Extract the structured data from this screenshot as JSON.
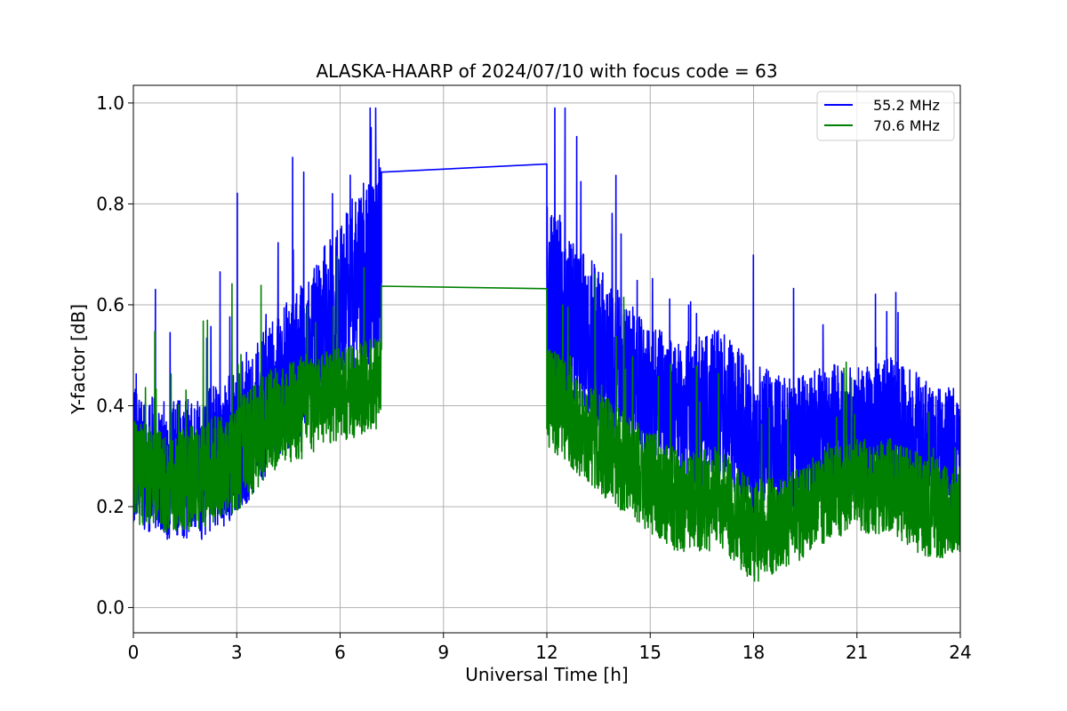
{
  "chart_data": {
    "type": "line",
    "title": "ALASKA-HAARP of 2024/07/10 with focus code = 63",
    "xlabel": "Universal Time [h]",
    "ylabel": "Y-factor [dB]",
    "xlim": [
      0,
      24
    ],
    "ylim": [
      -0.05,
      1.035
    ],
    "xticks": [
      0,
      3,
      6,
      9,
      12,
      15,
      18,
      21,
      24
    ],
    "xtick_labels": [
      "0",
      "3",
      "6",
      "9",
      "12",
      "15",
      "18",
      "21",
      "24"
    ],
    "yticks": [
      0.0,
      0.2,
      0.4,
      0.6,
      0.8,
      1.0
    ],
    "ytick_labels": [
      "0.0",
      "0.2",
      "0.4",
      "0.6",
      "0.8",
      "1.0"
    ],
    "grid": true,
    "legend_position": "top-right",
    "series": [
      {
        "name": "55.2 MHz",
        "color": "#0000ff",
        "envelope": {
          "x": [
            0,
            1,
            2,
            3,
            4,
            5,
            6,
            7,
            7.2,
            12.0,
            13,
            14,
            15,
            16,
            17,
            18,
            19,
            20,
            21,
            22,
            23,
            24
          ],
          "y": [
            0.3,
            0.27,
            0.28,
            0.33,
            0.42,
            0.5,
            0.6,
            0.68,
            0.68,
            0.62,
            0.55,
            0.48,
            0.42,
            0.38,
            0.4,
            0.33,
            0.32,
            0.35,
            0.34,
            0.36,
            0.32,
            0.31
          ],
          "amp": [
            0.16,
            0.16,
            0.17,
            0.18,
            0.17,
            0.18,
            0.2,
            0.23,
            0.23,
            0.22,
            0.2,
            0.18,
            0.17,
            0.17,
            0.18,
            0.18,
            0.16,
            0.16,
            0.16,
            0.16,
            0.16,
            0.14
          ]
        },
        "gap": {
          "x": [
            7.2,
            12.0
          ],
          "y": [
            0.863,
            0.879
          ]
        }
      },
      {
        "name": "70.6 MHz",
        "color": "#008000",
        "envelope": {
          "x": [
            0,
            1,
            2,
            3,
            4,
            5,
            6,
            7,
            7.2,
            12.0,
            13,
            14,
            15,
            16,
            17,
            18,
            19,
            20,
            21,
            22,
            23,
            24
          ],
          "y": [
            0.27,
            0.25,
            0.26,
            0.3,
            0.37,
            0.4,
            0.42,
            0.44,
            0.44,
            0.42,
            0.36,
            0.3,
            0.25,
            0.2,
            0.22,
            0.15,
            0.17,
            0.22,
            0.24,
            0.24,
            0.2,
            0.19
          ],
          "amp": [
            0.12,
            0.12,
            0.12,
            0.13,
            0.12,
            0.12,
            0.11,
            0.11,
            0.11,
            0.12,
            0.12,
            0.12,
            0.12,
            0.12,
            0.12,
            0.12,
            0.11,
            0.11,
            0.11,
            0.11,
            0.12,
            0.11
          ]
        },
        "gap": {
          "x": [
            7.2,
            12.0
          ],
          "y": [
            0.637,
            0.632
          ]
        }
      }
    ]
  }
}
